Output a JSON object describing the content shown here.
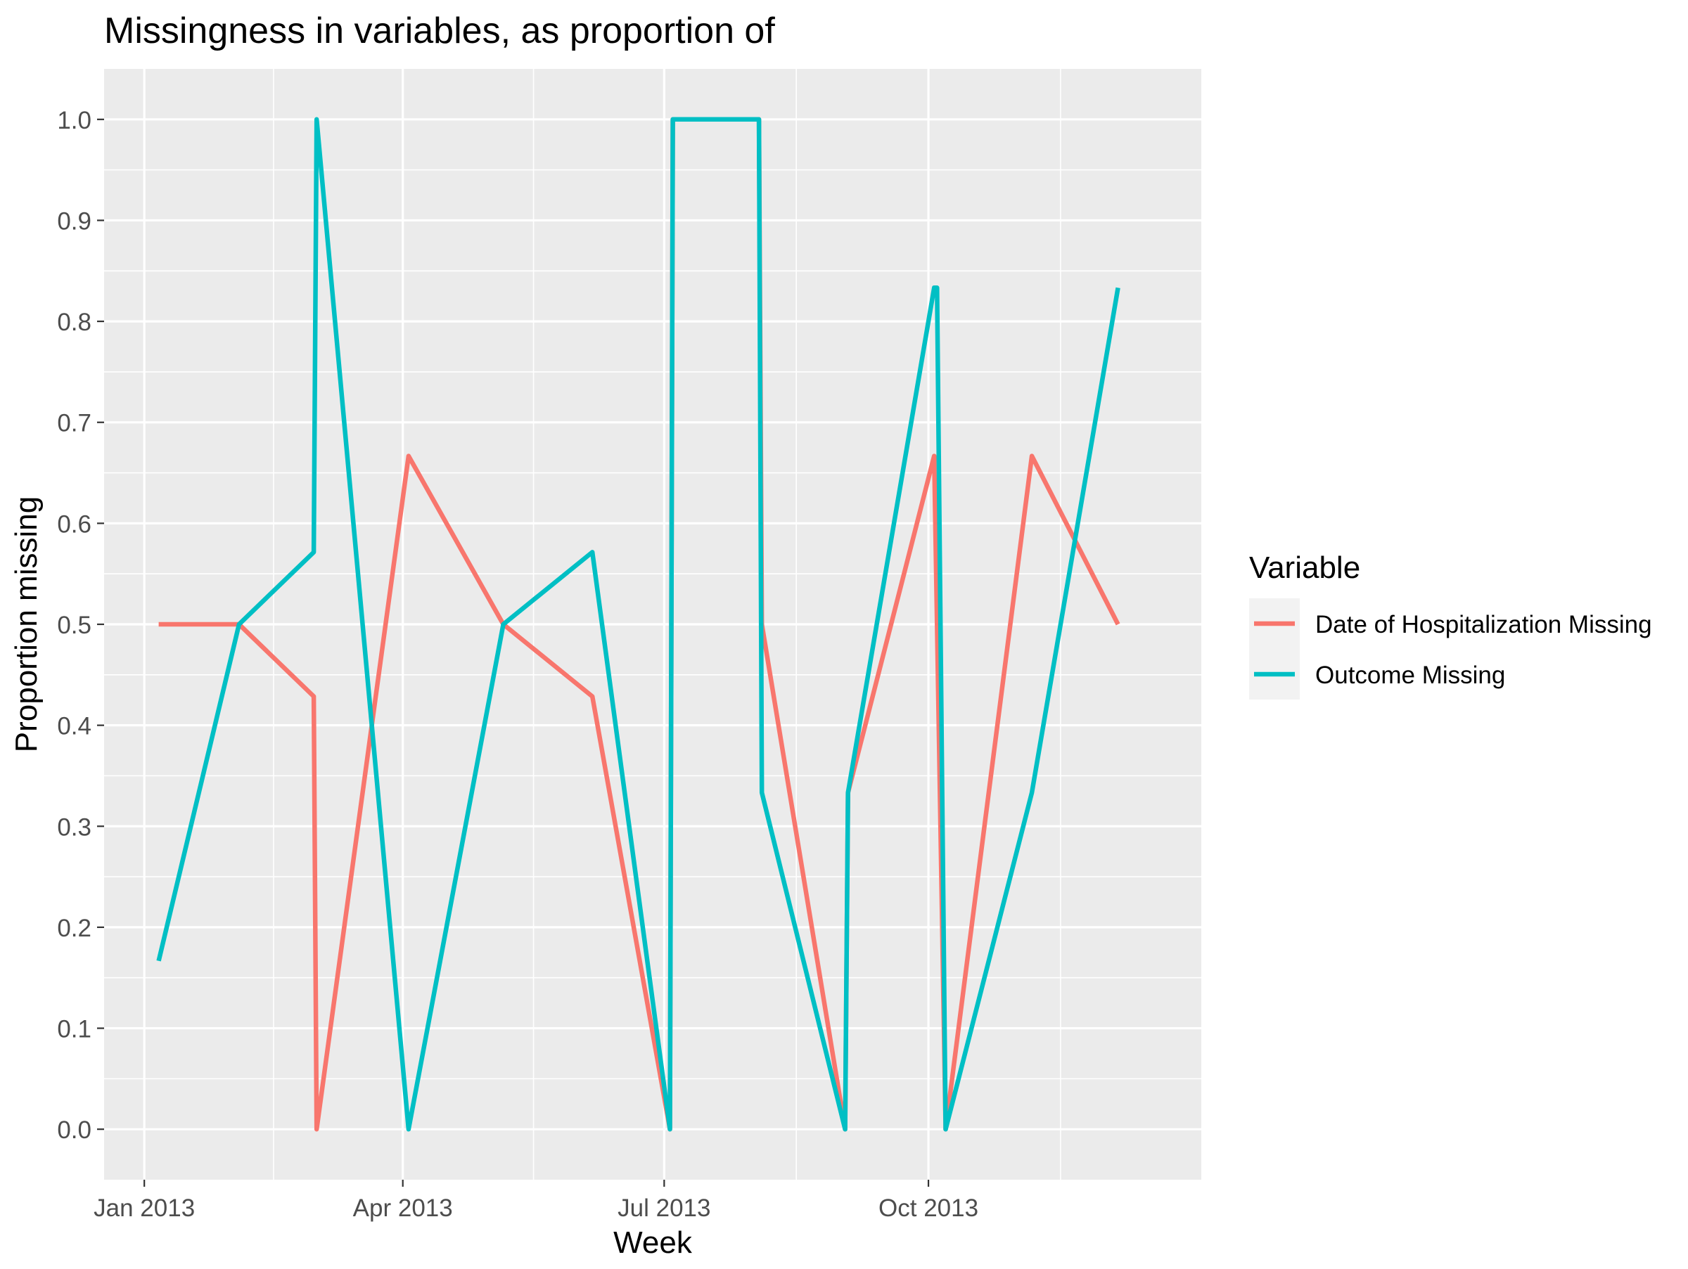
{
  "chart_data": {
    "type": "line",
    "title": "Missingness in variables, as proportion of",
    "xlabel": "Week",
    "ylabel": "Proportion missing",
    "x_ticks": [
      "Jan 2013",
      "Apr 2013",
      "Jul 2013",
      "Oct 2013"
    ],
    "y_ticks": [
      "0.0",
      "0.1",
      "0.2",
      "0.3",
      "0.4",
      "0.5",
      "0.6",
      "0.7",
      "0.8",
      "0.9",
      "1.0"
    ],
    "xlim": [
      "2012-12-18",
      "2014-01-04"
    ],
    "ylim": [
      -0.05,
      1.05
    ],
    "grid": true,
    "legend": {
      "title": "Variable",
      "position": "right"
    },
    "series": [
      {
        "name": "Date of Hospitalization Missing",
        "color": "#F8766D",
        "points": [
          [
            "2013-01-06",
            0.5
          ],
          [
            "2013-02-03",
            0.5
          ],
          [
            "2013-03-01",
            0.4286
          ],
          [
            "2013-03-02",
            0.0
          ],
          [
            "2013-04-03",
            0.6667
          ],
          [
            "2013-05-06",
            0.5
          ],
          [
            "2013-06-06",
            0.4286
          ],
          [
            "2013-07-03",
            0.0
          ],
          [
            "2013-07-04",
            1.0
          ],
          [
            "2013-08-03",
            1.0
          ],
          [
            "2013-08-04",
            0.5
          ],
          [
            "2013-09-02",
            0.0
          ],
          [
            "2013-09-03",
            0.3333
          ],
          [
            "2013-10-03",
            0.6667
          ],
          [
            "2013-10-07",
            0.0
          ],
          [
            "2013-11-06",
            0.6667
          ],
          [
            "2013-12-06",
            0.5
          ]
        ]
      },
      {
        "name": "Outcome Missing",
        "color": "#00BFC4",
        "points": [
          [
            "2013-01-06",
            0.1667
          ],
          [
            "2013-02-03",
            0.5
          ],
          [
            "2013-03-01",
            0.5714
          ],
          [
            "2013-03-02",
            1.0
          ],
          [
            "2013-04-03",
            0.0
          ],
          [
            "2013-05-06",
            0.5
          ],
          [
            "2013-06-06",
            0.5714
          ],
          [
            "2013-07-03",
            0.0
          ],
          [
            "2013-07-04",
            1.0
          ],
          [
            "2013-08-03",
            1.0
          ],
          [
            "2013-08-04",
            0.3333
          ],
          [
            "2013-09-02",
            0.0
          ],
          [
            "2013-09-03",
            0.3333
          ],
          [
            "2013-10-03",
            0.8333
          ],
          [
            "2013-10-04",
            0.8333
          ],
          [
            "2013-10-07",
            0.0
          ],
          [
            "2013-11-06",
            0.3333
          ],
          [
            "2013-12-06",
            0.8333
          ]
        ]
      }
    ]
  }
}
